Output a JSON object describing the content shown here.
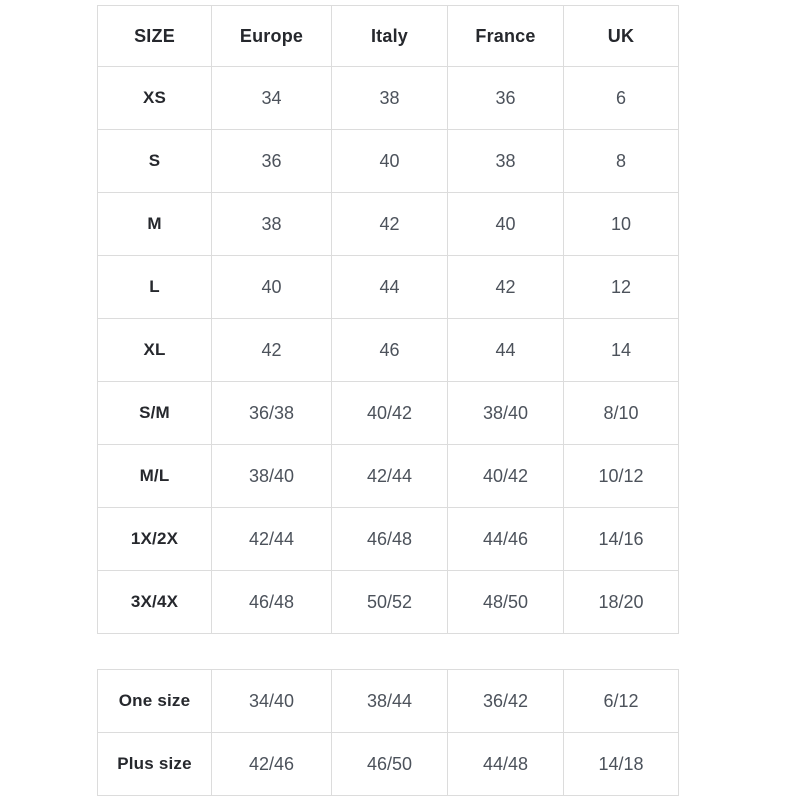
{
  "colors": {
    "background": "#ffffff",
    "border": "#dcdcdc",
    "header_text": "#26282d",
    "cell_text": "#4c525b"
  },
  "main_table": {
    "columns": [
      "SIZE",
      "Europe",
      "Italy",
      "France",
      "UK"
    ],
    "rows": [
      {
        "label": "XS",
        "values": [
          "34",
          "38",
          "36",
          "6"
        ]
      },
      {
        "label": "S",
        "values": [
          "36",
          "40",
          "38",
          "8"
        ]
      },
      {
        "label": "M",
        "values": [
          "38",
          "42",
          "40",
          "10"
        ]
      },
      {
        "label": "L",
        "values": [
          "40",
          "44",
          "42",
          "12"
        ]
      },
      {
        "label": "XL",
        "values": [
          "42",
          "46",
          "44",
          "14"
        ]
      },
      {
        "label": "S/M",
        "values": [
          "36/38",
          "40/42",
          "38/40",
          "8/10"
        ]
      },
      {
        "label": "M/L",
        "values": [
          "38/40",
          "42/44",
          "40/42",
          "10/12"
        ]
      },
      {
        "label": "1X/2X",
        "values": [
          "42/44",
          "46/48",
          "44/46",
          "14/16"
        ]
      },
      {
        "label": "3X/4X",
        "values": [
          "46/48",
          "50/52",
          "48/50",
          "18/20"
        ]
      }
    ]
  },
  "secondary_table": {
    "rows": [
      {
        "label": "One size",
        "values": [
          "34/40",
          "38/44",
          "36/42",
          "6/12"
        ]
      },
      {
        "label": "Plus size",
        "values": [
          "42/46",
          "46/50",
          "44/48",
          "14/18"
        ]
      }
    ]
  }
}
